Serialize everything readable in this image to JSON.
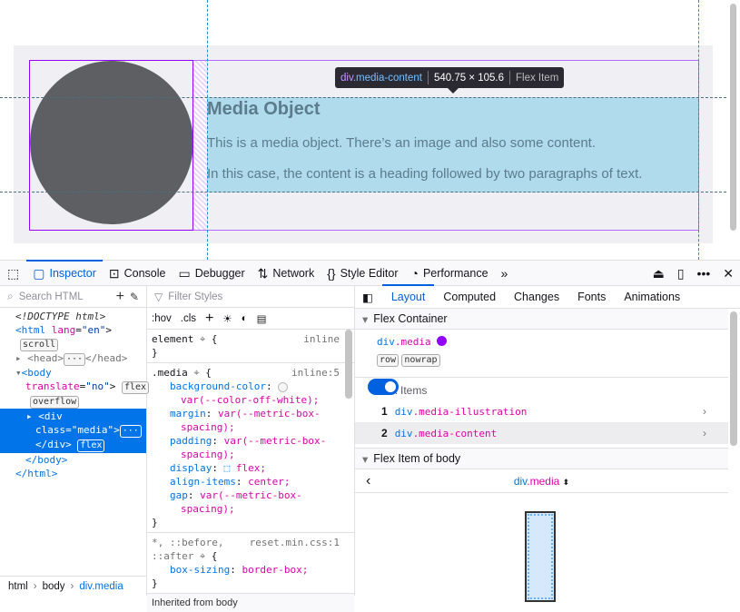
{
  "page": {
    "heading": "Media Object",
    "paragraph1": "This is a media object. There’s an image and also some content.",
    "paragraph2": "In this case, the content is a heading followed by two paragraphs of text.",
    "tooltip": {
      "selector_tag": "div",
      "selector_class": ".media-content",
      "size": "540.75 × 105.6",
      "type": "Flex Item"
    }
  },
  "toolbar": {
    "tabs": [
      {
        "label": "Inspector",
        "icon": "inspector-icon",
        "active": true
      },
      {
        "label": "Console",
        "icon": "console-icon"
      },
      {
        "label": "Debugger",
        "icon": "debugger-icon"
      },
      {
        "label": "Network",
        "icon": "network-icon"
      },
      {
        "label": "Style Editor",
        "icon": "style-editor-icon"
      },
      {
        "label": "Performance",
        "icon": "performance-icon"
      }
    ]
  },
  "markup": {
    "search_placeholder": "Search HTML",
    "doctype": "<!DOCTYPE html>",
    "html_badge": "scroll",
    "body_flex_badge": "flex",
    "body_overflow_badge": "overflow",
    "div_flex_badge": "flex",
    "breadcrumbs": [
      "html",
      "body",
      "div.media"
    ]
  },
  "rules": {
    "filter_placeholder": "Filter Styles",
    "hov": ":hov",
    "cls": ".cls",
    "element_selector": "element",
    "element_source": "inline",
    "media_selector": ".media",
    "media_source": "inline:5",
    "media_props": [
      {
        "name": "background-color",
        "value": "var(--color-off-white);"
      },
      {
        "name": "margin",
        "value": "var(--metric-box-",
        "cont": "spacing);"
      },
      {
        "name": "padding",
        "value": "var(--metric-box-",
        "cont": "spacing);"
      },
      {
        "name": "display",
        "value": "flex;"
      },
      {
        "name": "align-items",
        "value": "center;"
      },
      {
        "name": "gap",
        "value": "var(--metric-box-",
        "cont": "spacing);"
      }
    ],
    "reset_selector1": "*, ::before,",
    "reset_selector2": "::after",
    "reset_source": "reset.min.css:1",
    "reset_prop": {
      "name": "box-sizing",
      "value": "border-box;"
    },
    "inherited": "Inherited from body"
  },
  "layout": {
    "tabs": [
      "Layout",
      "Computed",
      "Changes",
      "Fonts",
      "Animations"
    ],
    "flex_container_title": "Flex Container",
    "container_tag": "div",
    "container_class": ".media",
    "container_color": "#9400ff",
    "badges": [
      "row",
      "nowrap"
    ],
    "toggle_on": true,
    "flex_items_title": "Flex Items",
    "items": [
      {
        "num": "1",
        "tag": "div",
        "cls": ".media-illustration"
      },
      {
        "num": "2",
        "tag": "div",
        "cls": ".media-content"
      }
    ],
    "flex_item_title": "Flex Item of body",
    "nav_tag": "div",
    "nav_class": ".media"
  }
}
